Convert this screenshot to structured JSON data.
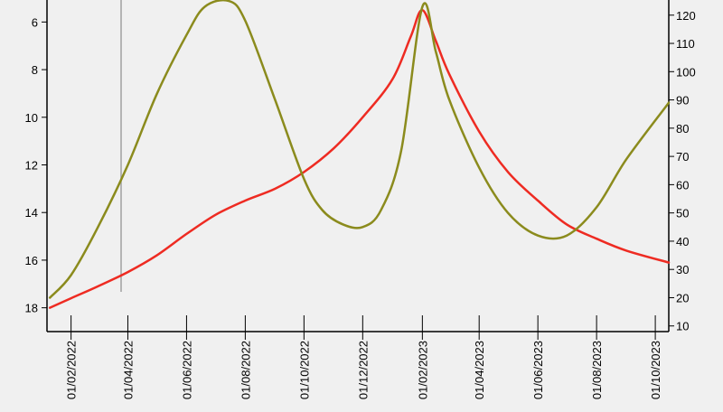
{
  "chart_data": {
    "type": "line",
    "background": "#f0f0f0",
    "x_ticks": [
      "01/02/2022",
      "01/04/2022",
      "01/06/2022",
      "01/08/2022",
      "01/10/2022",
      "01/12/2022",
      "01/02/2023",
      "01/04/2023",
      "01/06/2023",
      "01/08/2023",
      "01/10/2023"
    ],
    "xlim": [
      "2022-01-07",
      "2023-10-15"
    ],
    "left_axis": {
      "reversed": true,
      "ylim": [
        5,
        19
      ],
      "ticks": [
        6,
        8,
        10,
        12,
        14,
        16,
        18
      ]
    },
    "right_axis": {
      "reversed": false,
      "ylim": [
        8,
        126
      ],
      "ticks": [
        10,
        20,
        30,
        40,
        50,
        60,
        70,
        80,
        90,
        100,
        110,
        120
      ]
    },
    "cursor_date": "2022-03-25",
    "series": [
      {
        "axis": "left",
        "color": "#ee2b22",
        "points": [
          [
            "2022-01-10",
            18.0
          ],
          [
            "2022-02-01",
            17.6
          ],
          [
            "2022-03-01",
            17.1
          ],
          [
            "2022-04-01",
            16.5
          ],
          [
            "2022-05-01",
            15.8
          ],
          [
            "2022-06-01",
            14.9
          ],
          [
            "2022-07-01",
            14.1
          ],
          [
            "2022-08-01",
            13.5
          ],
          [
            "2022-09-01",
            13.0
          ],
          [
            "2022-10-01",
            12.3
          ],
          [
            "2022-11-01",
            11.3
          ],
          [
            "2022-12-01",
            10.0
          ],
          [
            "2023-01-01",
            8.4
          ],
          [
            "2023-01-20",
            6.6
          ],
          [
            "2023-02-01",
            5.5
          ],
          [
            "2023-02-15",
            6.8
          ],
          [
            "2023-03-01",
            8.2
          ],
          [
            "2023-04-01",
            10.6
          ],
          [
            "2023-05-01",
            12.3
          ],
          [
            "2023-06-01",
            13.5
          ],
          [
            "2023-07-01",
            14.5
          ],
          [
            "2023-08-01",
            15.1
          ],
          [
            "2023-09-01",
            15.6
          ],
          [
            "2023-10-15",
            16.1
          ]
        ]
      },
      {
        "axis": "right",
        "color": "#8b8b1d",
        "points": [
          [
            "2022-01-10",
            20
          ],
          [
            "2022-02-01",
            28
          ],
          [
            "2022-03-01",
            45
          ],
          [
            "2022-04-01",
            67
          ],
          [
            "2022-05-01",
            92
          ],
          [
            "2022-06-01",
            113
          ],
          [
            "2022-06-20",
            123
          ],
          [
            "2022-07-15",
            125
          ],
          [
            "2022-08-01",
            118
          ],
          [
            "2022-09-01",
            90
          ],
          [
            "2022-10-01",
            62
          ],
          [
            "2022-10-20",
            51
          ],
          [
            "2022-11-10",
            46
          ],
          [
            "2022-12-01",
            45
          ],
          [
            "2022-12-20",
            51
          ],
          [
            "2023-01-10",
            72
          ],
          [
            "2023-02-01",
            123
          ],
          [
            "2023-02-15",
            107
          ],
          [
            "2023-03-01",
            90
          ],
          [
            "2023-04-01",
            66
          ],
          [
            "2023-05-01",
            50
          ],
          [
            "2023-06-01",
            42
          ],
          [
            "2023-07-01",
            42
          ],
          [
            "2023-08-01",
            52
          ],
          [
            "2023-09-01",
            69
          ],
          [
            "2023-10-15",
            89
          ]
        ]
      }
    ]
  }
}
